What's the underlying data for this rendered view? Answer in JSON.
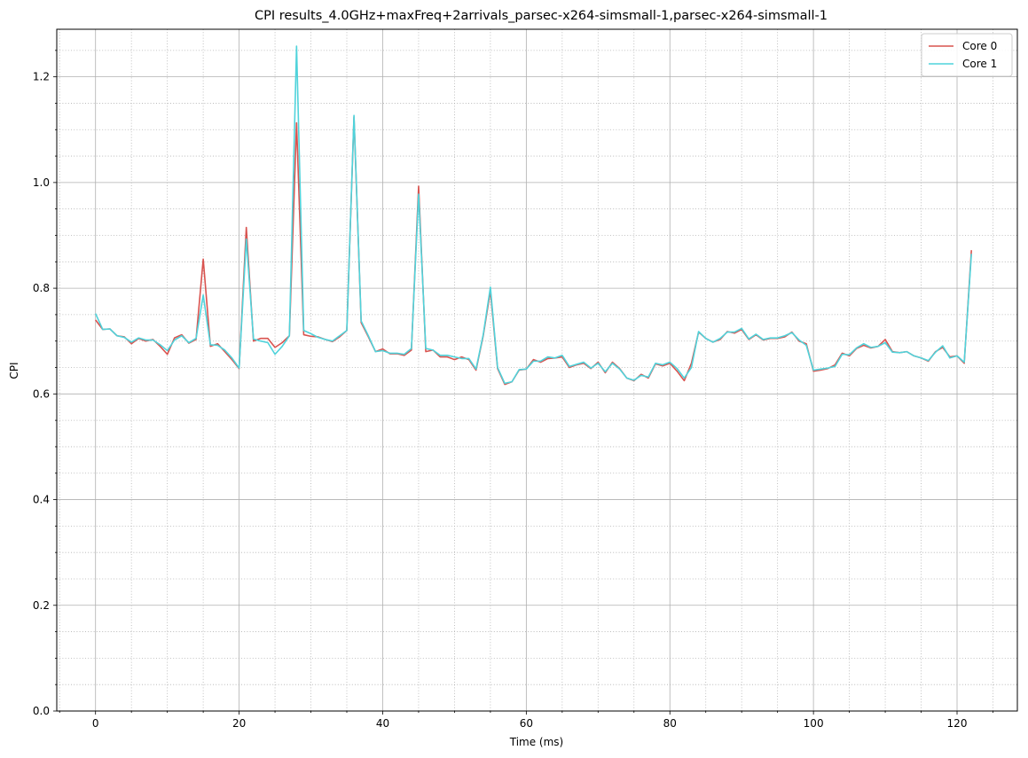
{
  "chart_data": {
    "type": "line",
    "title": "CPI results_4.0GHz+maxFreq+2arrivals_parsec-x264-simsmall-1,parsec-x264-simsmall-1",
    "xlabel": "Time (ms)",
    "ylabel": "CPI",
    "xlim": [
      -5.4,
      128.4
    ],
    "ylim": [
      0,
      1.29
    ],
    "xticks": [
      0,
      20,
      40,
      60,
      80,
      100,
      120
    ],
    "xtick_labels": [
      "0",
      "20",
      "40",
      "60",
      "80",
      "100",
      "120"
    ],
    "xminor_step": 5,
    "yticks": [
      0,
      0.2,
      0.4,
      0.6,
      0.8,
      1.0,
      1.2
    ],
    "ytick_labels": [
      "0.0",
      "0.2",
      "0.4",
      "0.6",
      "0.8",
      "1.0",
      "1.2"
    ],
    "yminor_step": 0.05,
    "grid": {
      "major": true,
      "minor": true
    },
    "legend_position": "top-right",
    "x_start": 0,
    "x_step": 1,
    "series": [
      {
        "name": "Core 0",
        "color": "#d9534f",
        "values": [
          0.74,
          0.722,
          0.723,
          0.71,
          0.708,
          0.695,
          0.705,
          0.7,
          0.703,
          0.69,
          0.675,
          0.706,
          0.712,
          0.696,
          0.703,
          0.855,
          0.69,
          0.695,
          0.68,
          0.665,
          0.648,
          0.915,
          0.7,
          0.705,
          0.705,
          0.688,
          0.697,
          0.71,
          1.113,
          0.712,
          0.709,
          0.708,
          0.703,
          0.699,
          0.708,
          0.72,
          1.124,
          0.735,
          0.708,
          0.68,
          0.685,
          0.676,
          0.676,
          0.673,
          0.683,
          0.993,
          0.68,
          0.683,
          0.67,
          0.67,
          0.665,
          0.67,
          0.665,
          0.645,
          0.71,
          0.795,
          0.648,
          0.618,
          0.623,
          0.645,
          0.647,
          0.665,
          0.66,
          0.667,
          0.668,
          0.67,
          0.65,
          0.655,
          0.658,
          0.648,
          0.66,
          0.64,
          0.66,
          0.648,
          0.63,
          0.625,
          0.637,
          0.63,
          0.657,
          0.653,
          0.658,
          0.643,
          0.625,
          0.658,
          0.717,
          0.705,
          0.698,
          0.703,
          0.718,
          0.715,
          0.722,
          0.703,
          0.712,
          0.702,
          0.705,
          0.705,
          0.708,
          0.717,
          0.7,
          0.695,
          0.643,
          0.645,
          0.648,
          0.655,
          0.677,
          0.672,
          0.686,
          0.692,
          0.687,
          0.69,
          0.703,
          0.68,
          0.678,
          0.68,
          0.672,
          0.668,
          0.662,
          0.68,
          0.688,
          0.67,
          0.672,
          0.658,
          0.872
        ]
      },
      {
        "name": "Core 1",
        "color": "#4fd3db",
        "values": [
          0.752,
          0.722,
          0.723,
          0.71,
          0.707,
          0.698,
          0.706,
          0.702,
          0.702,
          0.693,
          0.682,
          0.702,
          0.71,
          0.697,
          0.705,
          0.787,
          0.693,
          0.692,
          0.683,
          0.668,
          0.649,
          0.893,
          0.704,
          0.7,
          0.697,
          0.675,
          0.69,
          0.71,
          1.258,
          0.72,
          0.714,
          0.707,
          0.703,
          0.7,
          0.71,
          0.72,
          1.127,
          0.738,
          0.71,
          0.68,
          0.682,
          0.677,
          0.677,
          0.675,
          0.686,
          0.978,
          0.686,
          0.683,
          0.673,
          0.673,
          0.67,
          0.667,
          0.667,
          0.647,
          0.712,
          0.802,
          0.65,
          0.62,
          0.623,
          0.646,
          0.647,
          0.662,
          0.662,
          0.67,
          0.668,
          0.673,
          0.652,
          0.656,
          0.66,
          0.649,
          0.658,
          0.642,
          0.658,
          0.647,
          0.63,
          0.626,
          0.635,
          0.632,
          0.658,
          0.655,
          0.66,
          0.648,
          0.63,
          0.65,
          0.718,
          0.705,
          0.698,
          0.705,
          0.717,
          0.717,
          0.724,
          0.704,
          0.713,
          0.703,
          0.706,
          0.706,
          0.71,
          0.716,
          0.702,
          0.692,
          0.645,
          0.647,
          0.649,
          0.652,
          0.675,
          0.674,
          0.687,
          0.695,
          0.688,
          0.69,
          0.697,
          0.679,
          0.678,
          0.68,
          0.672,
          0.668,
          0.663,
          0.679,
          0.691,
          0.668,
          0.672,
          0.66,
          0.865
        ]
      }
    ]
  }
}
